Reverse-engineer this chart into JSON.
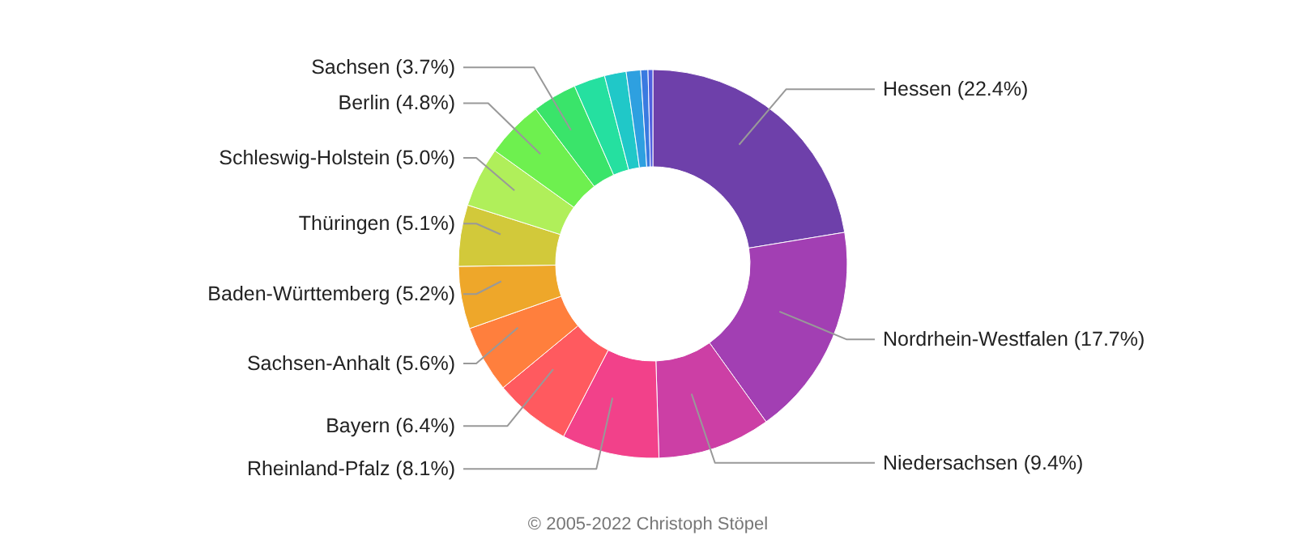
{
  "chart_data": {
    "type": "donut",
    "categories": [
      "Hessen",
      "Nordrhein-Westfalen",
      "Niedersachsen",
      "Rheinland-Pfalz",
      "Bayern",
      "Sachsen-Anhalt",
      "Baden-Württemberg",
      "Thüringen",
      "Schleswig-Holstein",
      "Berlin",
      "Sachsen",
      null,
      null,
      null,
      null,
      null
    ],
    "values": [
      22.4,
      17.7,
      9.4,
      8.1,
      6.4,
      5.6,
      5.2,
      5.1,
      5.0,
      4.8,
      3.7,
      2.6,
      1.8,
      1.2,
      0.6,
      0.4
    ],
    "value_labels": [
      "(22.4%)",
      "(17.7%)",
      "(9.4%)",
      "(8.1%)",
      "(6.4%)",
      "(5.6%)",
      "(5.2%)",
      "(5.1%)",
      "(5.0%)",
      "(4.8%)",
      "(3.7%)",
      null,
      null,
      null,
      null,
      null
    ],
    "colors": [
      "#6e40aa",
      "#a23fb3",
      "#cc3fa5",
      "#f2418a",
      "#ff5a5f",
      "#ff7f3d",
      "#eea72a",
      "#d2c93a",
      "#b0ef5a",
      "#6ef04f",
      "#3ae46a",
      "#25e0a0",
      "#20c8c8",
      "#2ea0e0",
      "#3a7ae0",
      "#5060e0"
    ],
    "annotations": [
      "© 2005-2022 Christoph Stöpel"
    ]
  }
}
